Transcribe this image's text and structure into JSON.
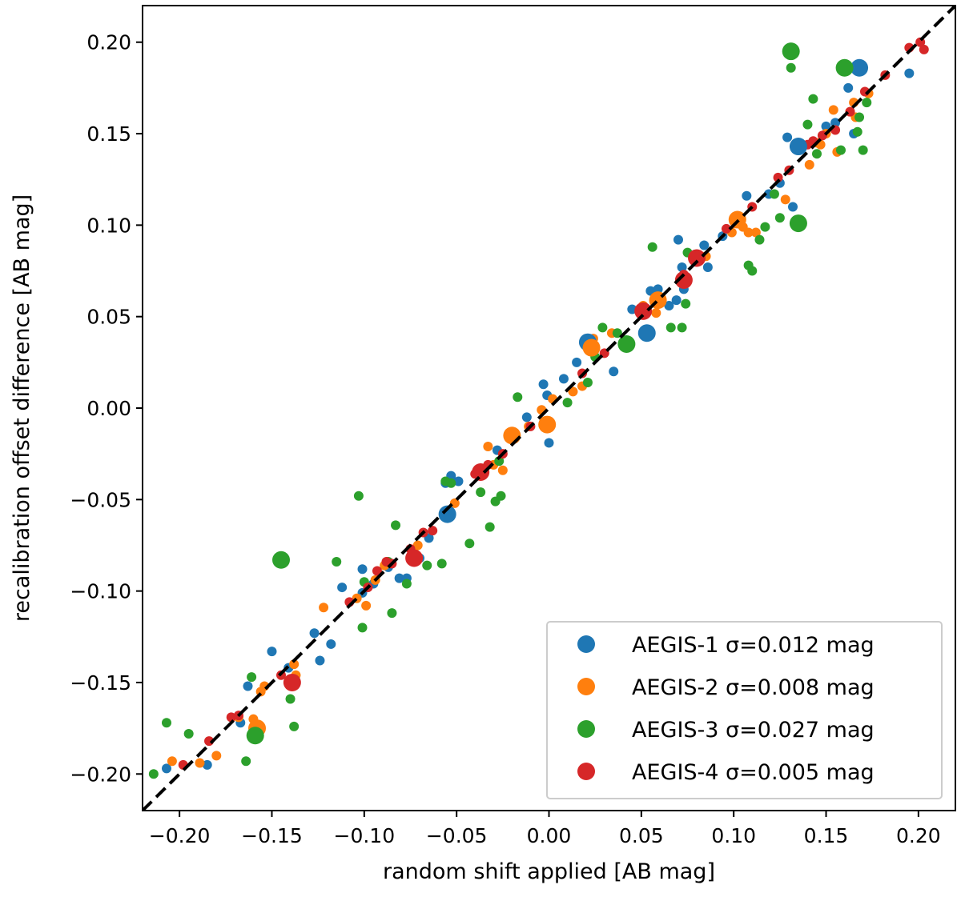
{
  "chart_data": {
    "type": "scatter",
    "xlabel": "random shift applied [AB mag]",
    "ylabel": "recalibration offset difference [AB mag]",
    "xlim": [
      -0.22,
      0.22
    ],
    "ylim": [
      -0.22,
      0.22
    ],
    "xticks": [
      -0.2,
      -0.15,
      -0.1,
      -0.05,
      0.0,
      0.05,
      0.1,
      0.15,
      0.2
    ],
    "yticks": [
      -0.2,
      -0.15,
      -0.1,
      -0.05,
      0.0,
      0.05,
      0.1,
      0.15,
      0.2
    ],
    "xtick_labels": [
      "−0.20",
      "−0.15",
      "−0.10",
      "−0.05",
      "0.00",
      "0.05",
      "0.10",
      "0.15",
      "0.20"
    ],
    "ytick_labels": [
      "−0.20",
      "−0.15",
      "−0.10",
      "−0.05",
      "0.00",
      "0.05",
      "0.10",
      "0.15",
      "0.20"
    ],
    "reference_line": {
      "style": "dashed",
      "color": "#000000",
      "slope": 1,
      "intercept": 0
    },
    "legend_position": "lower-right",
    "series": [
      {
        "name": "AEGIS-1",
        "sigma_label": "σ=0.012 mag",
        "legend_label": "AEGIS-1 σ=0.012 mag",
        "color": "#1f77b4",
        "points": [
          [
            -0.207,
            -0.197,
            0
          ],
          [
            -0.185,
            -0.195,
            0
          ],
          [
            -0.167,
            -0.172,
            0
          ],
          [
            -0.163,
            -0.152,
            0
          ],
          [
            -0.15,
            -0.133,
            0
          ],
          [
            -0.141,
            -0.142,
            0
          ],
          [
            -0.127,
            -0.123,
            0
          ],
          [
            -0.124,
            -0.138,
            0
          ],
          [
            -0.118,
            -0.129,
            0
          ],
          [
            -0.112,
            -0.098,
            0
          ],
          [
            -0.101,
            -0.101,
            0
          ],
          [
            -0.101,
            -0.088,
            0
          ],
          [
            -0.095,
            -0.096,
            0
          ],
          [
            -0.087,
            -0.087,
            0
          ],
          [
            -0.081,
            -0.093,
            0
          ],
          [
            -0.077,
            -0.093,
            0
          ],
          [
            -0.07,
            -0.082,
            0
          ],
          [
            -0.065,
            -0.071,
            0
          ],
          [
            -0.056,
            -0.041,
            0
          ],
          [
            -0.053,
            -0.037,
            0
          ],
          [
            -0.049,
            -0.04,
            0
          ],
          [
            -0.028,
            -0.023,
            0
          ],
          [
            -0.012,
            -0.005,
            0
          ],
          [
            -0.003,
            0.013,
            0
          ],
          [
            -0.001,
            0.007,
            0
          ],
          [
            0.0,
            -0.019,
            0
          ],
          [
            0.008,
            0.016,
            0
          ],
          [
            0.015,
            0.025,
            0
          ],
          [
            0.035,
            0.02,
            0
          ],
          [
            0.045,
            0.054,
            0
          ],
          [
            0.055,
            0.064,
            0
          ],
          [
            0.059,
            0.065,
            0
          ],
          [
            0.065,
            0.056,
            0
          ],
          [
            0.069,
            0.059,
            0
          ],
          [
            0.07,
            0.092,
            0
          ],
          [
            0.072,
            0.077,
            0
          ],
          [
            0.073,
            0.065,
            0
          ],
          [
            0.079,
            0.084,
            0
          ],
          [
            0.084,
            0.089,
            0
          ],
          [
            0.086,
            0.077,
            0
          ],
          [
            0.094,
            0.094,
            0
          ],
          [
            0.104,
            0.104,
            0
          ],
          [
            0.107,
            0.116,
            0
          ],
          [
            0.119,
            0.117,
            0
          ],
          [
            0.125,
            0.123,
            0
          ],
          [
            0.129,
            0.148,
            0
          ],
          [
            0.132,
            0.11,
            0
          ],
          [
            0.15,
            0.154,
            0
          ],
          [
            0.155,
            0.156,
            0
          ],
          [
            0.162,
            0.175,
            0
          ],
          [
            0.165,
            0.15,
            0
          ],
          [
            0.195,
            0.183,
            0
          ],
          [
            -0.055,
            -0.058,
            1
          ],
          [
            0.021,
            0.036,
            1
          ],
          [
            0.053,
            0.041,
            1
          ],
          [
            0.135,
            0.143,
            1
          ],
          [
            0.168,
            0.186,
            1
          ]
        ]
      },
      {
        "name": "AEGIS-2",
        "sigma_label": "σ=0.008 mag",
        "legend_label": "AEGIS-2 σ=0.008 mag",
        "color": "#ff7f0e",
        "points": [
          [
            -0.204,
            -0.193,
            0
          ],
          [
            -0.189,
            -0.194,
            0
          ],
          [
            -0.18,
            -0.19,
            0
          ],
          [
            -0.168,
            -0.169,
            0
          ],
          [
            -0.16,
            -0.17,
            0
          ],
          [
            -0.156,
            -0.155,
            0
          ],
          [
            -0.154,
            -0.152,
            0
          ],
          [
            -0.138,
            -0.14,
            0
          ],
          [
            -0.137,
            -0.146,
            0
          ],
          [
            -0.122,
            -0.109,
            0
          ],
          [
            -0.104,
            -0.104,
            0
          ],
          [
            -0.099,
            -0.108,
            0
          ],
          [
            -0.094,
            -0.094,
            0
          ],
          [
            -0.089,
            -0.086,
            0
          ],
          [
            -0.073,
            -0.079,
            0
          ],
          [
            -0.071,
            -0.075,
            0
          ],
          [
            -0.051,
            -0.052,
            0
          ],
          [
            -0.033,
            -0.021,
            0
          ],
          [
            -0.03,
            -0.031,
            0
          ],
          [
            -0.025,
            -0.034,
            0
          ],
          [
            -0.011,
            -0.01,
            0
          ],
          [
            -0.004,
            -0.001,
            0
          ],
          [
            0.002,
            0.005,
            0
          ],
          [
            0.013,
            0.009,
            0
          ],
          [
            0.018,
            0.012,
            0
          ],
          [
            0.024,
            0.038,
            0
          ],
          [
            0.034,
            0.041,
            0
          ],
          [
            0.051,
            0.056,
            0
          ],
          [
            0.058,
            0.052,
            0
          ],
          [
            0.085,
            0.083,
            0
          ],
          [
            0.099,
            0.096,
            0
          ],
          [
            0.105,
            0.099,
            0
          ],
          [
            0.108,
            0.096,
            0
          ],
          [
            0.112,
            0.096,
            0
          ],
          [
            0.128,
            0.114,
            0
          ],
          [
            0.141,
            0.133,
            0
          ],
          [
            0.145,
            0.145,
            0
          ],
          [
            0.147,
            0.144,
            0
          ],
          [
            0.15,
            0.15,
            0
          ],
          [
            0.154,
            0.163,
            0
          ],
          [
            0.156,
            0.14,
            0
          ],
          [
            0.163,
            0.162,
            0
          ],
          [
            0.165,
            0.167,
            0
          ],
          [
            0.166,
            0.159,
            0
          ],
          [
            0.173,
            0.172,
            0
          ],
          [
            -0.158,
            -0.175,
            1
          ],
          [
            -0.02,
            -0.015,
            1
          ],
          [
            -0.001,
            -0.009,
            1
          ],
          [
            0.023,
            0.033,
            1
          ],
          [
            0.059,
            0.059,
            1
          ],
          [
            0.102,
            0.103,
            1
          ]
        ]
      },
      {
        "name": "AEGIS-3",
        "sigma_label": "σ=0.027 mag",
        "legend_label": "AEGIS-3 σ=0.027 mag",
        "color": "#2ca02c",
        "points": [
          [
            -0.214,
            -0.2,
            0
          ],
          [
            -0.207,
            -0.172,
            0
          ],
          [
            -0.195,
            -0.178,
            0
          ],
          [
            -0.164,
            -0.193,
            0
          ],
          [
            -0.161,
            -0.147,
            0
          ],
          [
            -0.14,
            -0.159,
            0
          ],
          [
            -0.138,
            -0.174,
            0
          ],
          [
            -0.115,
            -0.084,
            0
          ],
          [
            -0.103,
            -0.048,
            0
          ],
          [
            -0.101,
            -0.12,
            0
          ],
          [
            -0.1,
            -0.095,
            0
          ],
          [
            -0.087,
            -0.084,
            0
          ],
          [
            -0.085,
            -0.112,
            0
          ],
          [
            -0.083,
            -0.064,
            0
          ],
          [
            -0.077,
            -0.096,
            0
          ],
          [
            -0.066,
            -0.086,
            0
          ],
          [
            -0.058,
            -0.085,
            0
          ],
          [
            -0.056,
            -0.04,
            0
          ],
          [
            -0.053,
            -0.041,
            0
          ],
          [
            -0.043,
            -0.074,
            0
          ],
          [
            -0.037,
            -0.046,
            0
          ],
          [
            -0.032,
            -0.065,
            0
          ],
          [
            -0.029,
            -0.051,
            0
          ],
          [
            -0.027,
            -0.029,
            0
          ],
          [
            -0.026,
            -0.048,
            0
          ],
          [
            -0.017,
            0.006,
            0
          ],
          [
            0.01,
            0.003,
            0
          ],
          [
            0.021,
            0.014,
            0
          ],
          [
            0.025,
            0.028,
            0
          ],
          [
            0.029,
            0.044,
            0
          ],
          [
            0.037,
            0.041,
            0
          ],
          [
            0.056,
            0.088,
            0
          ],
          [
            0.066,
            0.044,
            0
          ],
          [
            0.072,
            0.044,
            0
          ],
          [
            0.074,
            0.057,
            0
          ],
          [
            0.075,
            0.085,
            0
          ],
          [
            0.108,
            0.078,
            0
          ],
          [
            0.11,
            0.075,
            0
          ],
          [
            0.114,
            0.092,
            0
          ],
          [
            0.117,
            0.099,
            0
          ],
          [
            0.122,
            0.117,
            0
          ],
          [
            0.125,
            0.104,
            0
          ],
          [
            0.131,
            0.186,
            0
          ],
          [
            0.14,
            0.155,
            0
          ],
          [
            0.143,
            0.169,
            0
          ],
          [
            0.145,
            0.139,
            0
          ],
          [
            0.158,
            0.141,
            0
          ],
          [
            0.167,
            0.151,
            0
          ],
          [
            0.168,
            0.159,
            0
          ],
          [
            0.17,
            0.141,
            0
          ],
          [
            0.172,
            0.167,
            0
          ],
          [
            -0.145,
            -0.083,
            1
          ],
          [
            -0.159,
            -0.179,
            1
          ],
          [
            0.042,
            0.035,
            1
          ],
          [
            0.131,
            0.195,
            1
          ],
          [
            0.135,
            0.101,
            1
          ],
          [
            0.16,
            0.186,
            1
          ]
        ]
      },
      {
        "name": "AEGIS-4",
        "sigma_label": "σ=0.005 mag",
        "legend_label": "AEGIS-4 σ=0.005 mag",
        "color": "#d62728",
        "points": [
          [
            -0.198,
            -0.195,
            0
          ],
          [
            -0.184,
            -0.182,
            0
          ],
          [
            -0.172,
            -0.169,
            0
          ],
          [
            -0.168,
            -0.168,
            0
          ],
          [
            -0.145,
            -0.146,
            0
          ],
          [
            -0.108,
            -0.106,
            0
          ],
          [
            -0.098,
            -0.098,
            0
          ],
          [
            -0.093,
            -0.089,
            0
          ],
          [
            -0.088,
            -0.084,
            0
          ],
          [
            -0.085,
            -0.085,
            0
          ],
          [
            -0.075,
            -0.077,
            0
          ],
          [
            -0.068,
            -0.068,
            0
          ],
          [
            -0.063,
            -0.067,
            0
          ],
          [
            -0.054,
            -0.059,
            0
          ],
          [
            -0.04,
            -0.036,
            0
          ],
          [
            -0.033,
            -0.031,
            0
          ],
          [
            -0.025,
            -0.025,
            0
          ],
          [
            -0.01,
            -0.01,
            0
          ],
          [
            0.018,
            0.019,
            0
          ],
          [
            0.03,
            0.03,
            0
          ],
          [
            0.052,
            0.052,
            0
          ],
          [
            0.073,
            0.073,
            0
          ],
          [
            0.082,
            0.082,
            0
          ],
          [
            0.096,
            0.098,
            0
          ],
          [
            0.101,
            0.101,
            0
          ],
          [
            0.11,
            0.11,
            0
          ],
          [
            0.124,
            0.126,
            0
          ],
          [
            0.13,
            0.13,
            0
          ],
          [
            0.14,
            0.144,
            0
          ],
          [
            0.143,
            0.146,
            0
          ],
          [
            0.148,
            0.149,
            0
          ],
          [
            0.155,
            0.152,
            0
          ],
          [
            0.163,
            0.162,
            0
          ],
          [
            0.171,
            0.173,
            0
          ],
          [
            0.182,
            0.182,
            0
          ],
          [
            0.195,
            0.197,
            0
          ],
          [
            0.201,
            0.2,
            0
          ],
          [
            0.203,
            0.196,
            0
          ],
          [
            -0.139,
            -0.15,
            1
          ],
          [
            -0.073,
            -0.082,
            1
          ],
          [
            -0.037,
            -0.035,
            1
          ],
          [
            0.051,
            0.053,
            1
          ],
          [
            0.073,
            0.07,
            1
          ],
          [
            0.08,
            0.082,
            1
          ]
        ]
      }
    ]
  }
}
